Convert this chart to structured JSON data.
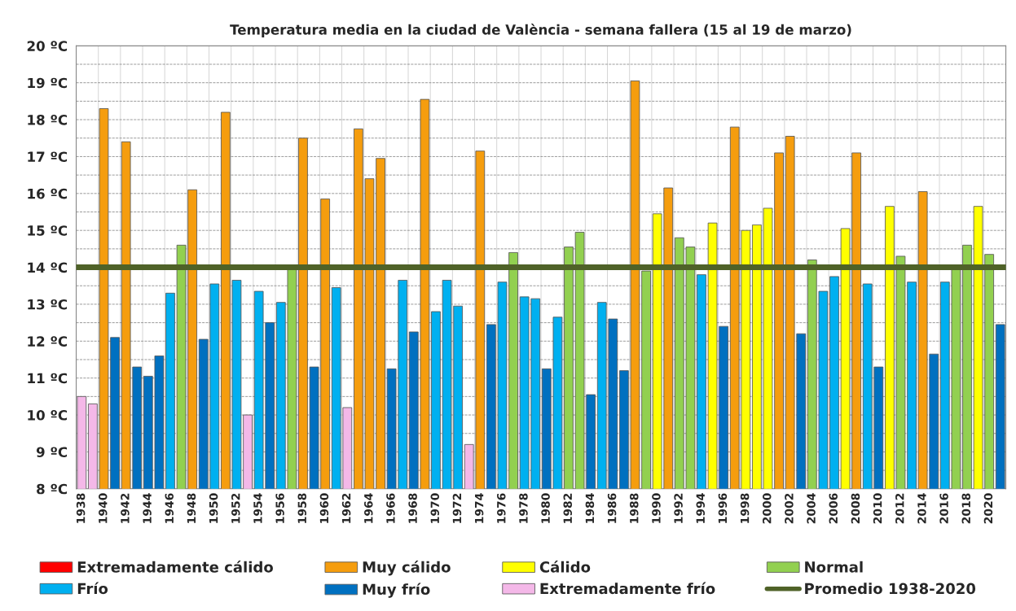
{
  "chart_data": {
    "type": "bar",
    "title": "Temperatura media en la ciudad de València - semana fallera (15 al 19 de marzo)",
    "categories": [
      "1938",
      null,
      "1940",
      null,
      "1942",
      null,
      "1944",
      null,
      "1946",
      null,
      "1948",
      null,
      "1950",
      null,
      "1952",
      null,
      "1954",
      null,
      "1956",
      null,
      "1958",
      null,
      "1960",
      null,
      "1962",
      null,
      "1964",
      null,
      "1966",
      null,
      "1968",
      null,
      "1970",
      null,
      "1972",
      null,
      "1974",
      null,
      "1976",
      null,
      "1978",
      null,
      "1980",
      null,
      "1982",
      null,
      "1984",
      null,
      "1986",
      null,
      "1988",
      null,
      "1990",
      null,
      "1992",
      null,
      "1994",
      null,
      "1996",
      null,
      "1998",
      null,
      "2000",
      null,
      "2002",
      null,
      "2004",
      null,
      "2006",
      null,
      "2008",
      null,
      "2010",
      null,
      "2012",
      null,
      "2014",
      null,
      "2016",
      null,
      "2018",
      null,
      "2020",
      null
    ],
    "series": [
      {
        "name": "Extremadamente cálido",
        "color": "#ff0000",
        "values": [
          null,
          null,
          null,
          null,
          null,
          null,
          null,
          null,
          null,
          null,
          null,
          null,
          null,
          null,
          null,
          null,
          null,
          null,
          null,
          null,
          null,
          null,
          null,
          null,
          null,
          null,
          null,
          null,
          null,
          null,
          null,
          null,
          null,
          null,
          null,
          null,
          null,
          null,
          null,
          null,
          null,
          null,
          null,
          null,
          null,
          null,
          null,
          null,
          null,
          null,
          null,
          null,
          null,
          null,
          null,
          null,
          null,
          null,
          null,
          null,
          null,
          null,
          null,
          null,
          null,
          null,
          null,
          null,
          null,
          null,
          null,
          null,
          null,
          null,
          null,
          null,
          null,
          null,
          null,
          null,
          null,
          null,
          null,
          null
        ]
      },
      {
        "name": "Muy cálido",
        "color": "#f59d0e",
        "values": [
          null,
          null,
          18.3,
          null,
          17.4,
          null,
          null,
          null,
          null,
          null,
          16.1,
          null,
          null,
          18.2,
          null,
          null,
          null,
          null,
          null,
          null,
          17.5,
          null,
          15.85,
          null,
          null,
          17.75,
          16.4,
          16.95,
          null,
          null,
          null,
          18.55,
          null,
          null,
          null,
          null,
          17.15,
          null,
          null,
          null,
          null,
          null,
          null,
          null,
          null,
          null,
          null,
          null,
          null,
          null,
          19.05,
          null,
          null,
          16.15,
          null,
          null,
          null,
          null,
          null,
          17.8,
          null,
          null,
          null,
          17.1,
          17.55,
          null,
          null,
          null,
          null,
          null,
          17.1,
          null,
          null,
          null,
          null,
          null,
          16.05,
          null,
          null,
          null,
          null,
          null,
          null,
          null
        ]
      },
      {
        "name": "Cálido",
        "color": "#ffff00",
        "values": [
          null,
          null,
          null,
          null,
          null,
          null,
          null,
          null,
          null,
          null,
          null,
          null,
          null,
          null,
          null,
          null,
          null,
          null,
          null,
          null,
          null,
          null,
          null,
          null,
          null,
          null,
          null,
          null,
          null,
          null,
          null,
          null,
          null,
          null,
          null,
          null,
          null,
          null,
          null,
          null,
          null,
          null,
          null,
          null,
          null,
          null,
          null,
          null,
          null,
          null,
          null,
          null,
          15.45,
          null,
          null,
          null,
          null,
          15.2,
          null,
          null,
          15.0,
          15.15,
          15.6,
          null,
          null,
          null,
          null,
          null,
          null,
          15.05,
          null,
          null,
          null,
          15.65,
          null,
          null,
          null,
          null,
          null,
          null,
          null,
          15.65,
          null,
          null
        ]
      },
      {
        "name": "Normal",
        "color": "#92d050",
        "values": [
          null,
          null,
          null,
          null,
          null,
          null,
          null,
          null,
          null,
          14.6,
          null,
          null,
          null,
          null,
          null,
          null,
          null,
          null,
          null,
          14.0,
          null,
          null,
          null,
          null,
          null,
          null,
          null,
          null,
          null,
          null,
          null,
          null,
          null,
          null,
          null,
          null,
          null,
          null,
          null,
          14.4,
          null,
          null,
          null,
          null,
          14.55,
          14.95,
          null,
          null,
          null,
          null,
          null,
          13.9,
          null,
          null,
          14.8,
          14.55,
          null,
          null,
          null,
          null,
          null,
          null,
          null,
          null,
          null,
          null,
          14.2,
          null,
          null,
          null,
          null,
          null,
          null,
          null,
          14.3,
          null,
          null,
          null,
          null,
          14.0,
          14.6,
          null,
          14.35,
          null
        ]
      },
      {
        "name": "Frío",
        "color": "#00b0f0",
        "values": [
          null,
          null,
          null,
          null,
          null,
          null,
          null,
          null,
          13.3,
          null,
          null,
          null,
          13.55,
          null,
          13.65,
          null,
          13.35,
          null,
          13.05,
          null,
          null,
          null,
          null,
          13.45,
          null,
          null,
          null,
          null,
          null,
          13.65,
          null,
          null,
          12.8,
          13.65,
          12.95,
          null,
          null,
          null,
          13.6,
          null,
          13.2,
          13.15,
          null,
          12.65,
          null,
          null,
          null,
          13.05,
          null,
          null,
          null,
          null,
          null,
          null,
          null,
          null,
          13.8,
          null,
          null,
          null,
          null,
          null,
          null,
          null,
          null,
          null,
          null,
          13.35,
          13.75,
          null,
          null,
          13.55,
          null,
          null,
          null,
          13.6,
          null,
          null,
          13.6,
          null,
          null,
          null,
          null,
          null
        ]
      },
      {
        "name": "Muy frío",
        "color": "#0070c0",
        "values": [
          null,
          null,
          null,
          12.1,
          null,
          11.3,
          11.05,
          11.6,
          null,
          null,
          null,
          12.05,
          null,
          null,
          null,
          null,
          null,
          12.5,
          null,
          null,
          null,
          11.3,
          null,
          null,
          null,
          null,
          null,
          null,
          11.25,
          null,
          12.25,
          null,
          null,
          null,
          null,
          null,
          null,
          12.45,
          null,
          null,
          null,
          null,
          11.25,
          null,
          null,
          null,
          10.55,
          null,
          12.6,
          11.2,
          null,
          null,
          null,
          null,
          null,
          null,
          null,
          null,
          12.4,
          null,
          null,
          null,
          null,
          null,
          null,
          12.2,
          null,
          null,
          null,
          null,
          null,
          null,
          11.3,
          null,
          null,
          null,
          null,
          11.65,
          null,
          null,
          null,
          null,
          null,
          12.45
        ]
      },
      {
        "name": "Extremadamente frío",
        "color": "#f4b8e8",
        "values": [
          10.5,
          10.3,
          null,
          null,
          null,
          null,
          null,
          null,
          null,
          null,
          null,
          null,
          null,
          null,
          null,
          10.0,
          null,
          null,
          null,
          null,
          null,
          null,
          null,
          null,
          10.2,
          null,
          null,
          null,
          null,
          null,
          null,
          null,
          null,
          null,
          null,
          9.2,
          null,
          null,
          null,
          null,
          null,
          null,
          null,
          null,
          null,
          null,
          null,
          null,
          null,
          null,
          null,
          null,
          null,
          null,
          null,
          null,
          null,
          null,
          null,
          null,
          null,
          null,
          null,
          null,
          null,
          null,
          null,
          null,
          null,
          null,
          null,
          null,
          null,
          null,
          null,
          null,
          null,
          null,
          null,
          null,
          null,
          null,
          null,
          null
        ]
      }
    ],
    "ref_lines": [
      {
        "axis": "y",
        "value": 14,
        "label": "Promedio 1938-2020",
        "color": "#4f6228",
        "line_style": "solid"
      }
    ],
    "ylim": [
      8,
      20
    ],
    "yticks": [
      {
        "value": 8,
        "label": "8 ºC"
      },
      {
        "value": 8.5,
        "label": null
      },
      {
        "value": 9,
        "label": "9 ºC"
      },
      {
        "value": 9.5,
        "label": null
      },
      {
        "value": 10,
        "label": "10 ºC"
      },
      {
        "value": 10.5,
        "label": null
      },
      {
        "value": 11,
        "label": "11 ºC"
      },
      {
        "value": 11.5,
        "label": null
      },
      {
        "value": 12,
        "label": "12 ºC"
      },
      {
        "value": 12.5,
        "label": null
      },
      {
        "value": 13,
        "label": "13 ºC"
      },
      {
        "value": 13.5,
        "label": null
      },
      {
        "value": 14,
        "label": "14 ºC"
      },
      {
        "value": 14.5,
        "label": null
      },
      {
        "value": 15,
        "label": "15 ºC"
      },
      {
        "value": 15.5,
        "label": null
      },
      {
        "value": 16,
        "label": "16 ºC"
      },
      {
        "value": 16.5,
        "label": null
      },
      {
        "value": 17,
        "label": "17 ºC"
      },
      {
        "value": 17.5,
        "label": null
      },
      {
        "value": 18,
        "label": "18 ºC"
      },
      {
        "value": 18.5,
        "label": null
      },
      {
        "value": 19,
        "label": "19 ºC"
      },
      {
        "value": 19.5,
        "label": null
      },
      {
        "value": 20,
        "label": "20 ºC"
      }
    ],
    "grid": true,
    "legend": "bottom"
  }
}
